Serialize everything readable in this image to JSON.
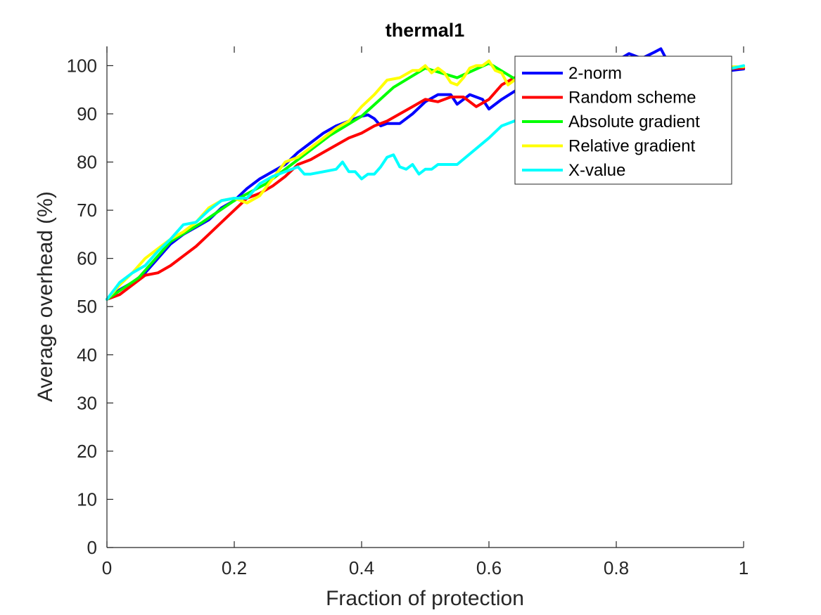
{
  "chart_data": {
    "type": "line",
    "title": "thermal1",
    "xlabel": "Fraction of protection",
    "ylabel": "Average overhead (%)",
    "xlim": [
      0,
      1
    ],
    "ylim": [
      0,
      104
    ],
    "xticks": [
      0,
      0.2,
      0.4,
      0.6,
      0.8,
      1
    ],
    "xtick_labels": [
      "0",
      "0.2",
      "0.4",
      "0.6",
      "0.8",
      "1"
    ],
    "yticks": [
      0,
      10,
      20,
      30,
      40,
      50,
      60,
      70,
      80,
      90,
      100
    ],
    "ytick_labels": [
      "0",
      "10",
      "20",
      "30",
      "40",
      "50",
      "60",
      "70",
      "80",
      "90",
      "100"
    ],
    "grid": false,
    "legend_position": "top-right",
    "series": [
      {
        "name": "2-norm",
        "color": "#0000ff",
        "x": [
          0,
          0.02,
          0.04,
          0.06,
          0.08,
          0.1,
          0.12,
          0.14,
          0.16,
          0.18,
          0.2,
          0.22,
          0.24,
          0.26,
          0.28,
          0.3,
          0.32,
          0.34,
          0.36,
          0.38,
          0.4,
          0.41,
          0.42,
          0.43,
          0.44,
          0.46,
          0.48,
          0.5,
          0.52,
          0.54,
          0.55,
          0.57,
          0.59,
          0.6,
          0.62,
          0.65,
          0.7,
          0.75,
          0.8,
          0.82,
          0.84,
          0.86,
          0.87,
          0.88,
          0.89,
          0.92,
          0.95,
          0.98,
          1.0
        ],
        "y": [
          51.5,
          53.5,
          55,
          57,
          60,
          63,
          65,
          66.5,
          68,
          70.5,
          72,
          74.5,
          76.5,
          78,
          79.5,
          82,
          84,
          86,
          87.5,
          88.5,
          89.5,
          89.8,
          89,
          87.5,
          88,
          88,
          90,
          92.5,
          94,
          94,
          92,
          94,
          93,
          91,
          93,
          95.5,
          97,
          98.5,
          101,
          102.5,
          101.5,
          102.8,
          103.5,
          101,
          101.5,
          100,
          99.5,
          99,
          99.3
        ]
      },
      {
        "name": "Random scheme",
        "color": "#ff0000",
        "x": [
          0,
          0.02,
          0.04,
          0.06,
          0.08,
          0.1,
          0.12,
          0.14,
          0.16,
          0.18,
          0.2,
          0.22,
          0.24,
          0.26,
          0.28,
          0.3,
          0.32,
          0.34,
          0.36,
          0.38,
          0.4,
          0.42,
          0.44,
          0.46,
          0.48,
          0.5,
          0.52,
          0.54,
          0.56,
          0.58,
          0.6,
          0.62,
          0.64,
          0.66,
          0.7,
          0.75,
          0.8,
          0.85,
          0.9,
          0.95,
          1.0
        ],
        "y": [
          51.5,
          52.5,
          54.5,
          56.5,
          57,
          58.5,
          60.5,
          62.5,
          65,
          67.5,
          70,
          72.5,
          73.5,
          75,
          77,
          79.5,
          80.5,
          82,
          83.5,
          85,
          86,
          87.5,
          88.5,
          90,
          91.5,
          93,
          92.5,
          93.5,
          93.5,
          91.5,
          93,
          96,
          97.5,
          97,
          97.5,
          98,
          98.5,
          98.8,
          99,
          99.2,
          99.5
        ]
      },
      {
        "name": "Absolute gradient",
        "color": "#00ff00",
        "x": [
          0,
          0.05,
          0.1,
          0.15,
          0.2,
          0.25,
          0.3,
          0.35,
          0.4,
          0.45,
          0.5,
          0.55,
          0.6,
          0.65,
          0.7,
          0.75,
          0.8,
          0.85,
          0.9,
          0.95,
          1.0
        ],
        "y": [
          51.5,
          56,
          63.5,
          67.5,
          72,
          75.5,
          80.5,
          85.5,
          89.5,
          95.5,
          99.5,
          97.5,
          100.5,
          96.5,
          97.5,
          98.5,
          99,
          99.2,
          99.5,
          99.6,
          99.8
        ]
      },
      {
        "name": "Relative gradient",
        "color": "#ffff00",
        "x": [
          0,
          0.02,
          0.04,
          0.06,
          0.08,
          0.1,
          0.12,
          0.14,
          0.16,
          0.18,
          0.2,
          0.22,
          0.24,
          0.26,
          0.28,
          0.3,
          0.32,
          0.34,
          0.36,
          0.38,
          0.4,
          0.42,
          0.44,
          0.46,
          0.48,
          0.49,
          0.5,
          0.51,
          0.52,
          0.53,
          0.54,
          0.55,
          0.56,
          0.57,
          0.58,
          0.59,
          0.6,
          0.61,
          0.62,
          0.63,
          0.64,
          0.66,
          0.7,
          0.75,
          0.8,
          0.85,
          0.9,
          0.95,
          1.0
        ],
        "y": [
          51.5,
          54.5,
          57,
          60,
          62,
          64,
          65.5,
          67.5,
          70.5,
          72,
          72.5,
          71.5,
          73,
          76.5,
          80,
          81,
          83,
          85,
          87,
          88.5,
          91.5,
          94,
          97,
          97.5,
          99,
          99,
          100,
          98.5,
          99.5,
          98.5,
          96.5,
          96,
          97.5,
          99.5,
          100,
          100,
          101,
          99,
          98.5,
          96,
          97,
          97.5,
          98,
          98.5,
          99,
          99.2,
          99.4,
          99.6,
          99.8
        ]
      },
      {
        "name": "X-value",
        "color": "#00ffff",
        "x": [
          0,
          0.02,
          0.04,
          0.06,
          0.08,
          0.1,
          0.12,
          0.14,
          0.16,
          0.18,
          0.2,
          0.22,
          0.24,
          0.26,
          0.28,
          0.3,
          0.31,
          0.32,
          0.34,
          0.36,
          0.37,
          0.38,
          0.39,
          0.4,
          0.41,
          0.42,
          0.43,
          0.44,
          0.45,
          0.46,
          0.47,
          0.48,
          0.49,
          0.5,
          0.51,
          0.52,
          0.53,
          0.54,
          0.55,
          0.6,
          0.62,
          0.65,
          0.7,
          0.75,
          0.8,
          0.85,
          0.9,
          0.95,
          1.0
        ],
        "y": [
          51.5,
          55,
          57,
          58.5,
          61.5,
          64,
          67,
          67.5,
          70,
          72,
          72.5,
          72.5,
          75.5,
          77,
          78,
          79,
          77.5,
          77.5,
          78,
          78.5,
          80,
          78,
          78,
          76.5,
          77.5,
          77.5,
          79,
          81,
          81.5,
          79,
          78.5,
          79.5,
          77.5,
          78.5,
          78.5,
          79.5,
          79.5,
          79.5,
          79.5,
          85,
          87.5,
          89,
          91,
          92.5,
          94,
          95.5,
          97,
          98.5,
          100
        ]
      }
    ]
  }
}
